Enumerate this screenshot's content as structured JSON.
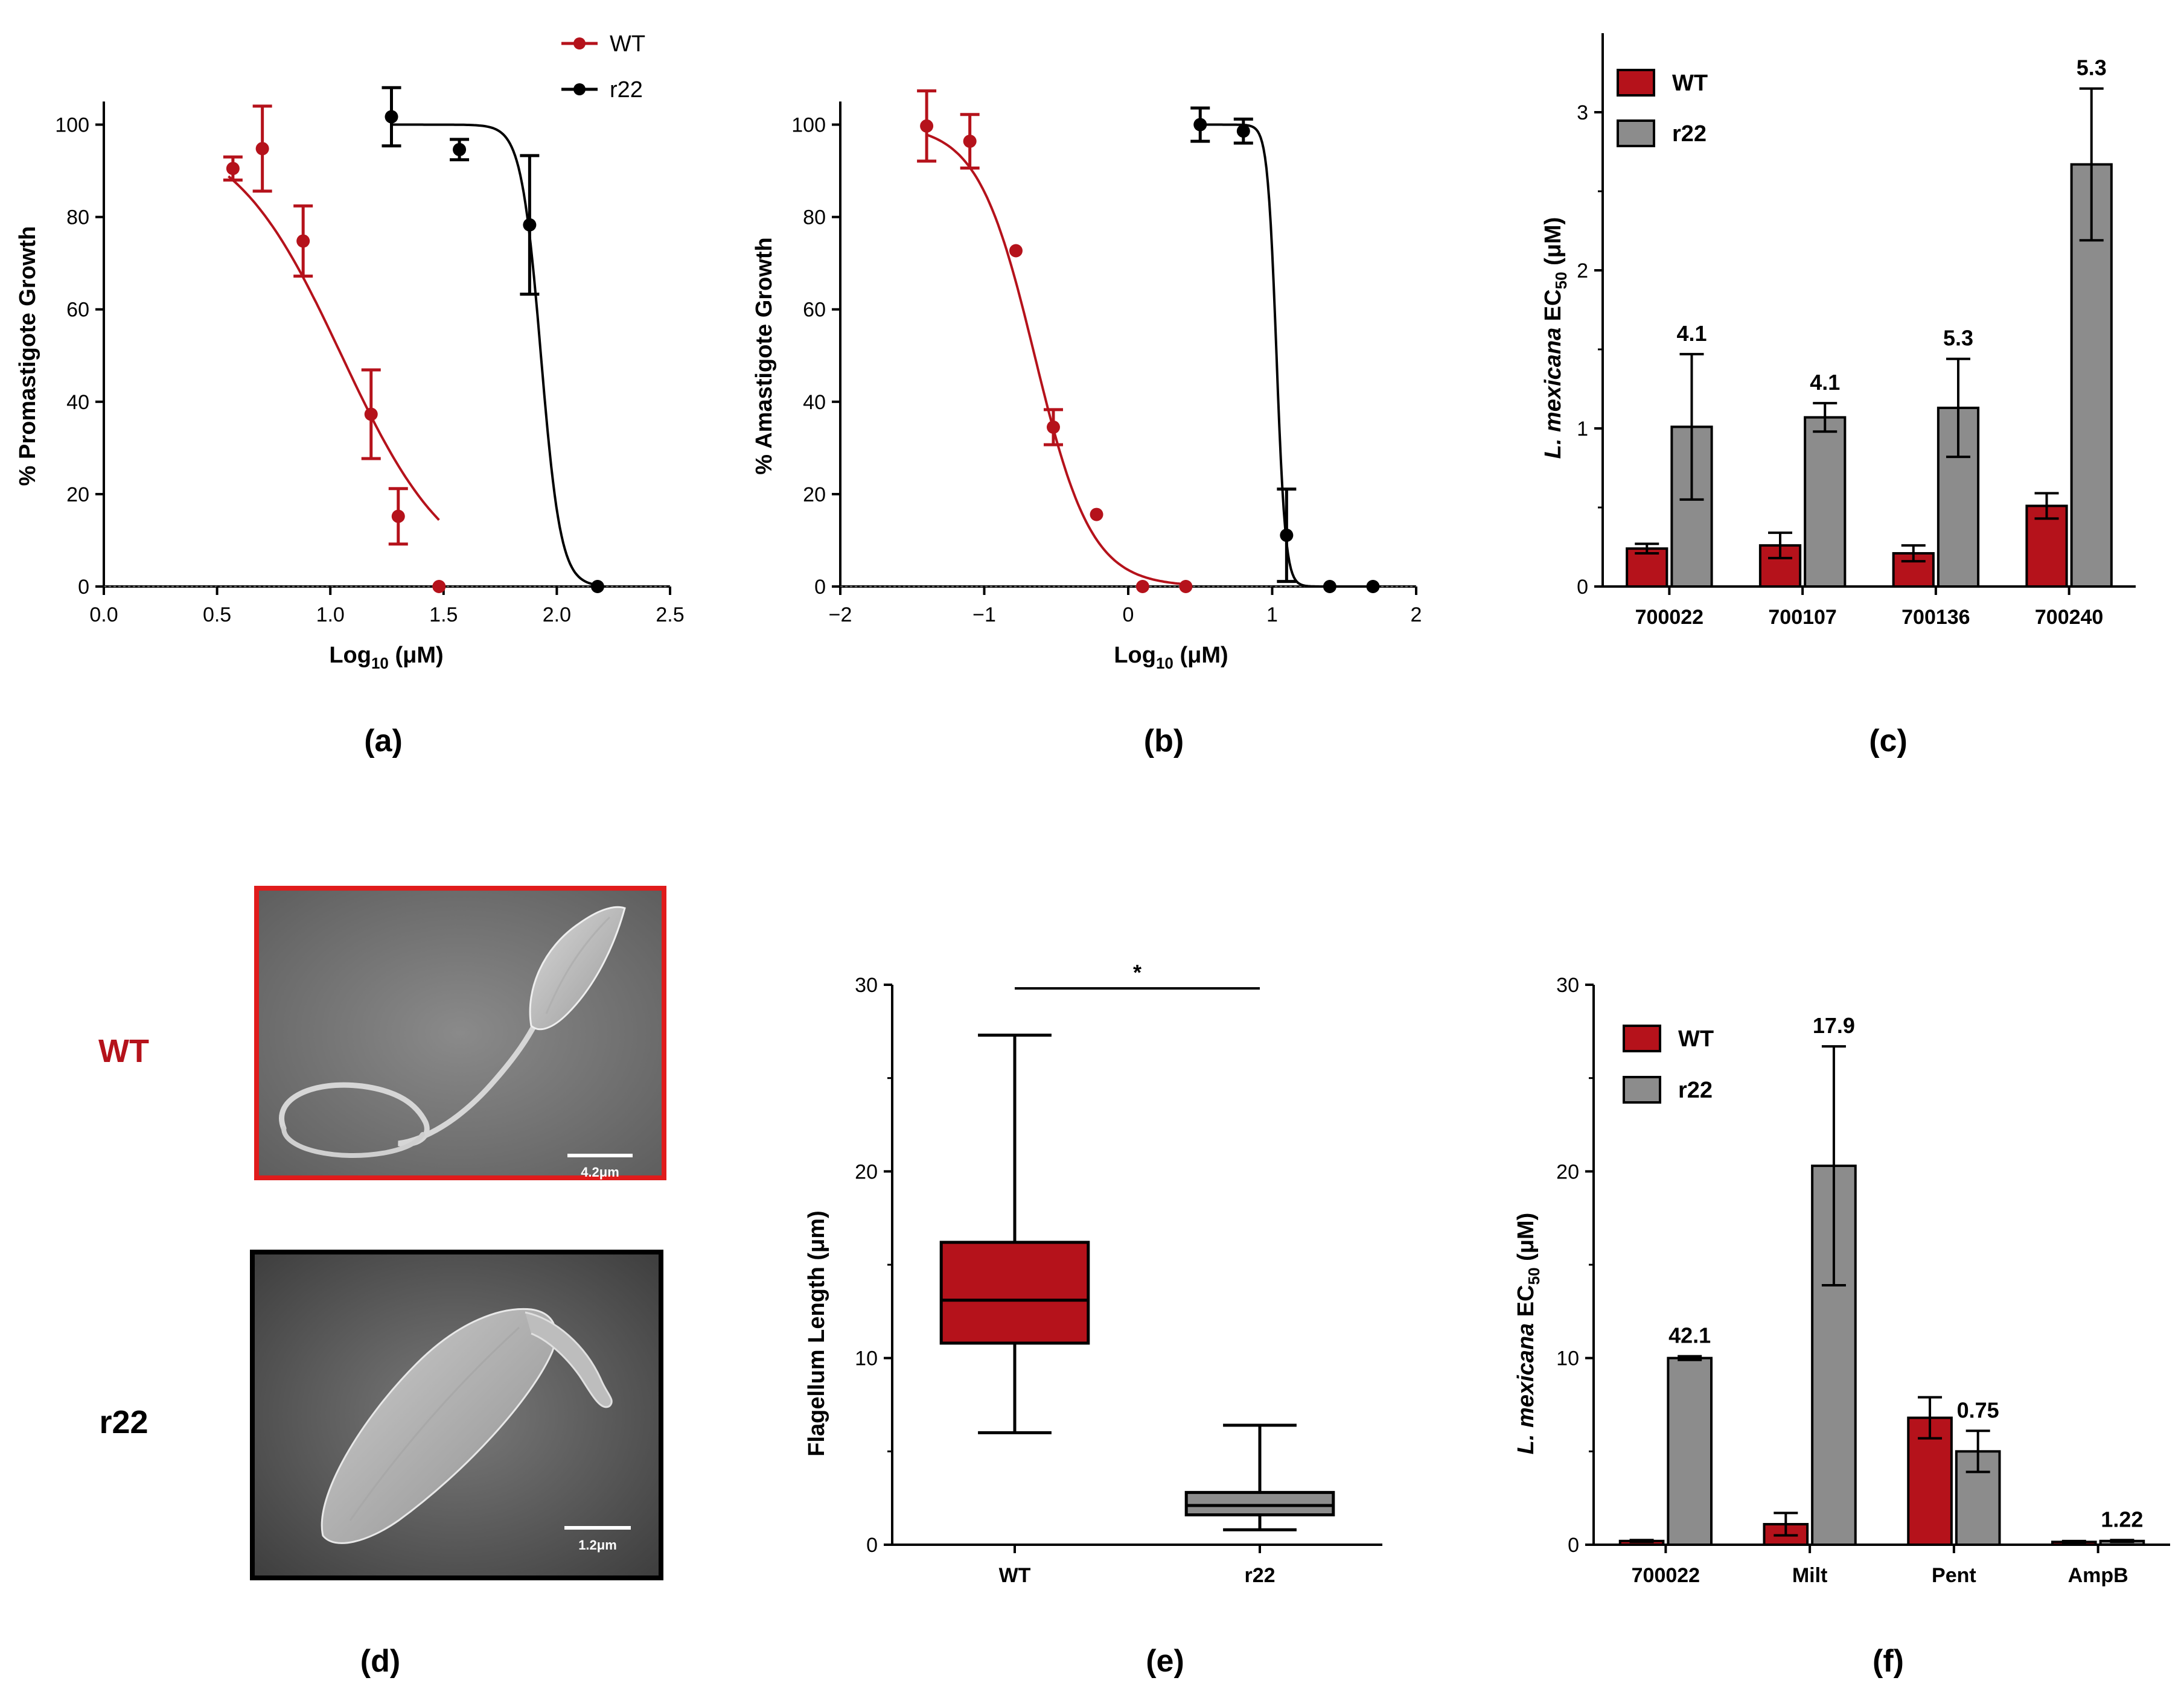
{
  "colors": {
    "wt": "#b5121b",
    "r22": "#000000",
    "r22_bar": "#8c8c8c",
    "axis": "#000000"
  },
  "chart_data": [
    {
      "id": "a",
      "type": "scatter",
      "panel_label": "(a)",
      "ylabel": "% Promastigote Growth",
      "xlabel": "Log10 (μM)",
      "xlim": [
        0.0,
        2.5
      ],
      "ylim": [
        0,
        110
      ],
      "xticks": [
        "0.0",
        "0.5",
        "1.0",
        "1.5",
        "2.0",
        "2.5"
      ],
      "yticks": [
        "0",
        "20",
        "40",
        "60",
        "80",
        "100"
      ],
      "legend_position": "top-right",
      "series": [
        {
          "name": "WT",
          "color_key": "wt",
          "points": [
            {
              "x": 0.57,
              "y": 90.5,
              "err": 2.5
            },
            {
              "x": 0.7,
              "y": 94.8,
              "err": 9.2
            },
            {
              "x": 0.88,
              "y": 74.8,
              "err": 7.6
            },
            {
              "x": 1.18,
              "y": 37.3,
              "err": 9.6
            },
            {
              "x": 1.3,
              "y": 15.2,
              "err": 6.0
            },
            {
              "x": 1.48,
              "y": 0.0,
              "err": 0
            }
          ],
          "fit": {
            "top": 100,
            "bottom": 0,
            "logEC50": 1.05,
            "hill": 1.8,
            "xrange": [
              0.55,
              1.48
            ]
          }
        },
        {
          "name": "r22",
          "color_key": "r22",
          "points": [
            {
              "x": 1.27,
              "y": 101.7,
              "err": 6.3
            },
            {
              "x": 1.57,
              "y": 94.6,
              "err": 2.2
            },
            {
              "x": 1.88,
              "y": 78.3,
              "err": 15.0
            },
            {
              "x": 2.18,
              "y": 0.0,
              "err": 0
            }
          ],
          "fit": {
            "top": 100,
            "bottom": 0,
            "logEC50": 1.93,
            "hill": 10,
            "xrange": [
              1.27,
              2.18
            ]
          }
        }
      ]
    },
    {
      "id": "b",
      "type": "scatter",
      "panel_label": "(b)",
      "ylabel": "% Amastigote Growth",
      "xlabel": "Log10 (μM)",
      "xlim": [
        -2,
        2
      ],
      "ylim": [
        0,
        110
      ],
      "xticks": [
        "−2",
        "−1",
        "0",
        "1",
        "2"
      ],
      "yticks": [
        "0",
        "20",
        "40",
        "60",
        "80",
        "100"
      ],
      "series": [
        {
          "name": "WT",
          "color_key": "wt",
          "points": [
            {
              "x": -1.4,
              "y": 99.7,
              "err": 7.6
            },
            {
              "x": -1.1,
              "y": 96.4,
              "err": 5.8
            },
            {
              "x": -0.78,
              "y": 72.7,
              "err": 0
            },
            {
              "x": -0.52,
              "y": 34.5,
              "err": 3.8
            },
            {
              "x": -0.22,
              "y": 15.6,
              "err": 0
            },
            {
              "x": 0.1,
              "y": 0.0,
              "err": 0
            },
            {
              "x": 0.4,
              "y": 0.0,
              "err": 0
            }
          ],
          "fit": {
            "top": 100,
            "bottom": 0,
            "logEC50": -0.65,
            "hill": 2.2,
            "xrange": [
              -1.4,
              0.4
            ]
          }
        },
        {
          "name": "r22",
          "color_key": "r22",
          "points": [
            {
              "x": 0.5,
              "y": 100.0,
              "err": 3.6
            },
            {
              "x": 0.8,
              "y": 98.6,
              "err": 2.6
            },
            {
              "x": 1.1,
              "y": 11.1,
              "err": 10.0
            },
            {
              "x": 1.4,
              "y": 0.0,
              "err": 0
            },
            {
              "x": 1.7,
              "y": 0.0,
              "err": 0
            }
          ],
          "fit": {
            "top": 100,
            "bottom": 0,
            "logEC50": 1.03,
            "hill": 14,
            "xrange": [
              0.5,
              1.7
            ]
          }
        }
      ]
    },
    {
      "id": "c",
      "type": "bar",
      "panel_label": "(c)",
      "ylabel_italic": "L. mexicana",
      "ylabel_rest": " EC",
      "ylabel_sub": "50",
      "ylabel_unit": " (μM)",
      "ylim": [
        0,
        3.5
      ],
      "yticks": [
        "0",
        "1",
        "2",
        "3"
      ],
      "categories": [
        "700022",
        "700107",
        "700136",
        "700240"
      ],
      "legend_position": "top-left",
      "series": [
        {
          "name": "WT",
          "color_key": "wt",
          "values": [
            0.24,
            0.26,
            0.21,
            0.51
          ],
          "errors": [
            0.03,
            0.08,
            0.05,
            0.08
          ]
        },
        {
          "name": "r22",
          "color_key": "r22_bar",
          "values": [
            1.01,
            1.07,
            1.13,
            2.67
          ],
          "errors": [
            0.46,
            0.09,
            0.31,
            0.48
          ]
        }
      ],
      "annotations": [
        "4.1",
        "4.1",
        "5.3",
        "5.3"
      ]
    },
    {
      "id": "e",
      "type": "box",
      "panel_label": "(e)",
      "ylabel": "Flagellum Length (μm)",
      "ylim": [
        0,
        30
      ],
      "yticks": [
        "0",
        "10",
        "20",
        "30"
      ],
      "categories": [
        "WT",
        "r22"
      ],
      "boxes": [
        {
          "color_key": "wt",
          "min": 6.0,
          "q1": 10.8,
          "median": 13.1,
          "q3": 16.2,
          "max": 27.3
        },
        {
          "color_key": "r22_bar",
          "min": 0.8,
          "q1": 1.6,
          "median": 2.1,
          "q3": 2.8,
          "max": 6.4
        }
      ],
      "significance": "*"
    },
    {
      "id": "f",
      "type": "bar",
      "panel_label": "(f)",
      "ylabel_italic": "L. mexicana",
      "ylabel_rest": " EC",
      "ylabel_sub": "50",
      "ylabel_unit": " (μM)",
      "ylim": [
        0,
        30
      ],
      "yticks": [
        "0",
        "10",
        "20",
        "30"
      ],
      "categories": [
        "700022",
        "Milt",
        "Pent",
        "AmpB"
      ],
      "legend_position": "top-left",
      "series": [
        {
          "name": "WT",
          "color_key": "wt",
          "values": [
            0.2,
            1.1,
            6.8,
            0.15
          ],
          "errors": [
            0.05,
            0.6,
            1.1,
            0.05
          ]
        },
        {
          "name": "r22",
          "color_key": "r22_bar",
          "values": [
            10.0,
            20.3,
            5.0,
            0.2
          ],
          "errors": [
            0.1,
            6.4,
            1.1,
            0.05
          ]
        }
      ],
      "annotations": [
        "42.1",
        "17.9",
        "0.75",
        "1.22"
      ]
    }
  ],
  "panel_d": {
    "panel_label": "(d)",
    "wt_label": "WT",
    "r22_label": "r22",
    "wt_scale": "4.2μm",
    "r22_scale": "1.2μm"
  }
}
